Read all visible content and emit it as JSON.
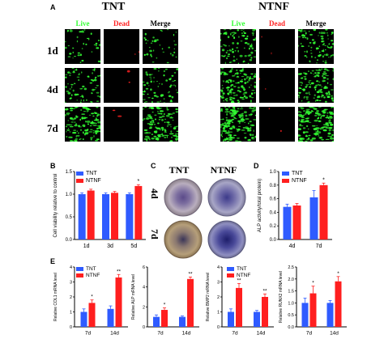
{
  "panelA": {
    "label": "A",
    "groups": [
      "TNT",
      "NTNF"
    ],
    "columns": [
      "Live",
      "Dead",
      "Merge"
    ],
    "rows": [
      "1d",
      "4d",
      "7d"
    ],
    "scalebar": "100 μm",
    "colors": {
      "live": "#33ff33",
      "dead": "#ff2222",
      "background": "#000000"
    }
  },
  "panelC": {
    "label": "C",
    "groups": [
      "TNT",
      "NTNF"
    ],
    "rows": [
      "4d",
      "7d"
    ]
  },
  "legend": {
    "tnt": "TNT",
    "ntnf": "NTNF"
  },
  "colors": {
    "tnt": "#2f5bff",
    "ntnf": "#ff1f1f"
  },
  "chart_data": [
    {
      "panel": "B",
      "type": "bar",
      "ylabel": "Cell viability relative to control",
      "categories": [
        "1d",
        "3d",
        "5d"
      ],
      "ylim": [
        0.0,
        1.5
      ],
      "yticks": [
        "0.0",
        "0.5",
        "1.0",
        "1.5"
      ],
      "series": [
        {
          "name": "TNT",
          "values": [
            1.0,
            1.0,
            1.0
          ],
          "errors": [
            0.03,
            0.03,
            0.03
          ]
        },
        {
          "name": "NTNF",
          "values": [
            1.08,
            1.03,
            1.18
          ],
          "errors": [
            0.03,
            0.03,
            0.03
          ]
        }
      ],
      "annotations": [
        "",
        "",
        "*"
      ]
    },
    {
      "panel": "D",
      "type": "bar",
      "ylabel": "ALP activity/total protein)",
      "categories": [
        "4d",
        "7d"
      ],
      "ylim": [
        0.0,
        1.0
      ],
      "yticks": [
        "0.0",
        "0.2",
        "0.4",
        "0.6",
        "0.8",
        "1.0"
      ],
      "series": [
        {
          "name": "TNT",
          "values": [
            0.48,
            0.62
          ],
          "errors": [
            0.04,
            0.1
          ]
        },
        {
          "name": "NTNF",
          "values": [
            0.5,
            0.8
          ],
          "errors": [
            0.03,
            0.03
          ]
        }
      ],
      "annotations": [
        "",
        "*"
      ]
    },
    {
      "panel": "E",
      "type": "bar",
      "ylabel": "Relative COL1 mRNA level",
      "categories": [
        "7d",
        "14d"
      ],
      "ylim": [
        0,
        4
      ],
      "yticks": [
        "0",
        "1",
        "2",
        "3",
        "4"
      ],
      "series": [
        {
          "name": "TNT",
          "values": [
            1.0,
            1.2
          ],
          "errors": [
            0.2,
            0.2
          ]
        },
        {
          "name": "NTNF",
          "values": [
            1.6,
            3.3
          ],
          "errors": [
            0.2,
            0.2
          ]
        }
      ],
      "annotations": [
        "*",
        "**"
      ]
    },
    {
      "panel": "",
      "type": "bar",
      "ylabel": "Relative ALP mRNA level",
      "categories": [
        "7d",
        "14d"
      ],
      "ylim": [
        0,
        6
      ],
      "yticks": [
        "0",
        "2",
        "4",
        "6"
      ],
      "series": [
        {
          "name": "TNT",
          "values": [
            1.0,
            1.0
          ],
          "errors": [
            0.2,
            0.1
          ]
        },
        {
          "name": "NTNF",
          "values": [
            1.7,
            4.8
          ],
          "errors": [
            0.2,
            0.2
          ]
        }
      ],
      "annotations": [
        "*",
        "**"
      ]
    },
    {
      "panel": "",
      "type": "bar",
      "ylabel": "Relative BMP2 mRNA level",
      "categories": [
        "7d",
        "14d"
      ],
      "ylim": [
        0,
        4
      ],
      "yticks": [
        "0",
        "1",
        "2",
        "3",
        "4"
      ],
      "series": [
        {
          "name": "TNT",
          "values": [
            1.0,
            1.0
          ],
          "errors": [
            0.2,
            0.1
          ]
        },
        {
          "name": "NTNF",
          "values": [
            2.6,
            2.0
          ],
          "errors": [
            0.3,
            0.2
          ]
        }
      ],
      "annotations": [
        "**",
        "**"
      ]
    },
    {
      "panel": "",
      "type": "bar",
      "ylabel": "Relative RUNX2 mRNA level",
      "categories": [
        "7d",
        "14d"
      ],
      "ylim": [
        0,
        2.5
      ],
      "yticks": [
        "0.0",
        "0.5",
        "1.0",
        "1.5",
        "2.0",
        "2.5"
      ],
      "series": [
        {
          "name": "TNT",
          "values": [
            1.0,
            1.0
          ],
          "errors": [
            0.2,
            0.1
          ]
        },
        {
          "name": "NTNF",
          "values": [
            1.4,
            1.9
          ],
          "errors": [
            0.3,
            0.2
          ]
        }
      ],
      "annotations": [
        "*",
        "*"
      ]
    }
  ]
}
